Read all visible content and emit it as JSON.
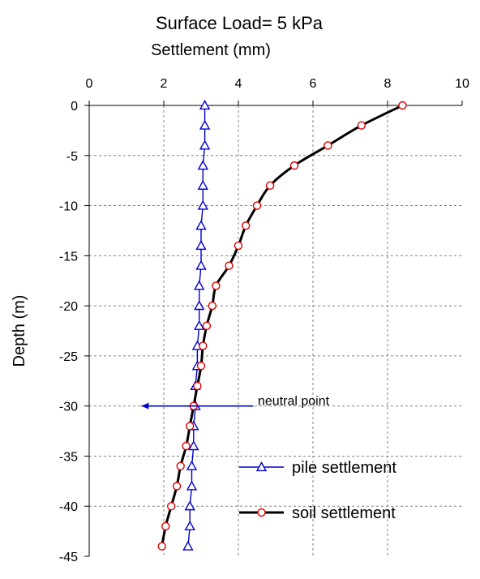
{
  "chart_data": {
    "type": "line",
    "title": "Surface Load= 5 kPa",
    "xlabel": "Settlement (mm)",
    "ylabel": "Depth (m)",
    "xlim": [
      0,
      10
    ],
    "ylim": [
      -45,
      0
    ],
    "x_axis_position": "top",
    "grid": true,
    "x_ticks": [
      "0",
      "2",
      "4",
      "6",
      "8",
      "10"
    ],
    "y_ticks": [
      "0",
      "-5",
      "-10",
      "-15",
      "-20",
      "-25",
      "-30",
      "-35",
      "-40",
      "-45"
    ],
    "series": [
      {
        "name": "pile settlement",
        "color": "#0000cc",
        "marker": "triangle",
        "points": [
          [
            3.1,
            0
          ],
          [
            3.1,
            -2
          ],
          [
            3.1,
            -4
          ],
          [
            3.05,
            -6
          ],
          [
            3.05,
            -8
          ],
          [
            3.05,
            -10
          ],
          [
            3.0,
            -12
          ],
          [
            3.0,
            -14
          ],
          [
            3.0,
            -16
          ],
          [
            2.95,
            -18
          ],
          [
            2.95,
            -20
          ],
          [
            2.95,
            -22
          ],
          [
            2.9,
            -24
          ],
          [
            2.9,
            -26
          ],
          [
            2.85,
            -28
          ],
          [
            2.85,
            -30
          ],
          [
            2.8,
            -32
          ],
          [
            2.8,
            -34
          ],
          [
            2.75,
            -36
          ],
          [
            2.75,
            -38
          ],
          [
            2.7,
            -40
          ],
          [
            2.7,
            -42
          ],
          [
            2.65,
            -44
          ]
        ]
      },
      {
        "name": "soil settlement",
        "color": "#000000",
        "marker_edge": "#dd0000",
        "marker": "circle",
        "points": [
          [
            8.4,
            0
          ],
          [
            7.3,
            -2
          ],
          [
            6.4,
            -4
          ],
          [
            5.5,
            -6
          ],
          [
            4.85,
            -8
          ],
          [
            4.5,
            -10
          ],
          [
            4.2,
            -12
          ],
          [
            4.0,
            -14
          ],
          [
            3.75,
            -16
          ],
          [
            3.4,
            -18
          ],
          [
            3.3,
            -20
          ],
          [
            3.15,
            -22
          ],
          [
            3.05,
            -24
          ],
          [
            3.0,
            -26
          ],
          [
            2.9,
            -28
          ],
          [
            2.8,
            -30
          ],
          [
            2.7,
            -32
          ],
          [
            2.6,
            -34
          ],
          [
            2.45,
            -36
          ],
          [
            2.35,
            -38
          ],
          [
            2.2,
            -40
          ],
          [
            2.05,
            -42
          ],
          [
            1.95,
            -44
          ]
        ]
      }
    ],
    "annotations": [
      {
        "text": "neutral point",
        "arrow_from": [
          4.4,
          -30
        ],
        "arrow_to": [
          1.4,
          -30
        ],
        "color": "#0000cc"
      }
    ],
    "legend_position": "bottom-right"
  }
}
